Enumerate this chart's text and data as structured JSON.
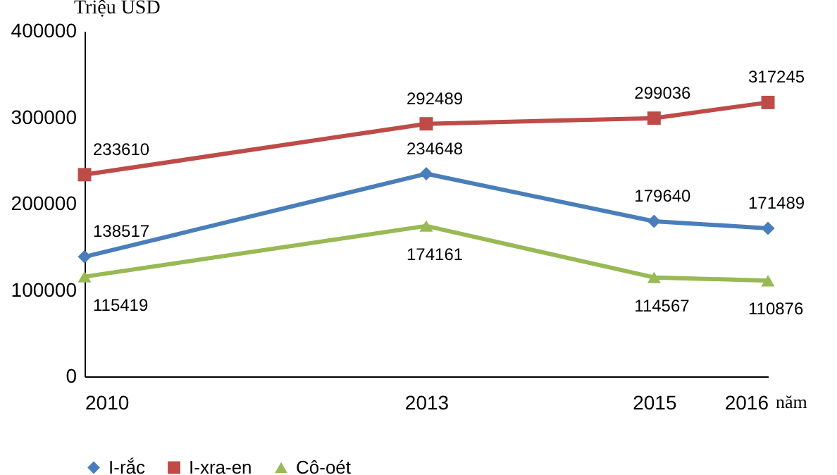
{
  "chart_data": {
    "type": "line",
    "ylabel": "Triệu USD",
    "xlabel": "năm",
    "x": [
      2010,
      2013,
      2015,
      2016
    ],
    "xlim": [
      2010,
      2016
    ],
    "xticks": [
      2010,
      2013,
      2015,
      2016
    ],
    "ylim": [
      0,
      400000
    ],
    "yticks": [
      0,
      100000,
      200000,
      300000,
      400000
    ],
    "series": [
      {
        "name": "I-rắc",
        "color": "#4a7ebb",
        "marker": "diamond",
        "values": [
          138517,
          234648,
          179640,
          171489
        ]
      },
      {
        "name": "I-xra-en",
        "color": "#be4b48",
        "marker": "square",
        "values": [
          233610,
          292489,
          299036,
          317245
        ]
      },
      {
        "name": "Cô-oét",
        "color": "#98b954",
        "marker": "triangle",
        "values": [
          115419,
          174161,
          114567,
          110876
        ]
      }
    ],
    "data_labels": true,
    "legend": "bottom",
    "grid": false
  }
}
